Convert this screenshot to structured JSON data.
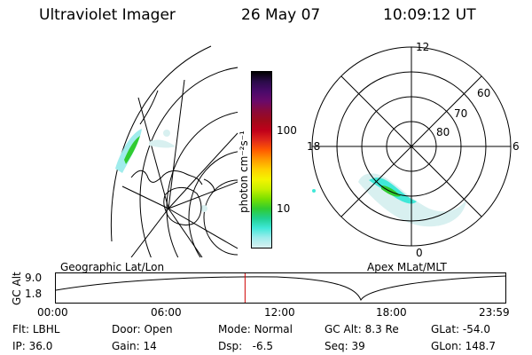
{
  "header": {
    "title": "Ultraviolet Imager",
    "date": "26 May 07",
    "time": "10:09:12 UT"
  },
  "colorbar": {
    "unit_label": "photon cm⁻²s⁻¹",
    "ticks": [
      "100",
      "10"
    ],
    "colors": [
      "#000000",
      "#2b0b4a",
      "#4a0a6a",
      "#6a0a6a",
      "#8a0a3a",
      "#a00a1a",
      "#c0001a",
      "#e0281a",
      "#ff5a00",
      "#ff9a00",
      "#ffd000",
      "#f4f400",
      "#c8f000",
      "#7ae000",
      "#30cc30",
      "#20d090",
      "#40e8d8",
      "#a0ecec",
      "#d8f0f0"
    ]
  },
  "left_map": {
    "caption": "Geographic Lat/Lon"
  },
  "right_map": {
    "caption": "Apex MLat/MLT",
    "mlt_labels": {
      "top": "12",
      "left": "18",
      "right": "6",
      "bottom": "0"
    },
    "lat_labels": [
      "60",
      "70",
      "80"
    ]
  },
  "timeline": {
    "ylabel": "GC Alt",
    "yticks": [
      "9.0",
      "1.8"
    ],
    "xticks": [
      "00:00",
      "06:00",
      "12:00",
      "18:00",
      "23:59"
    ],
    "current_time_fraction": 0.42
  },
  "info": {
    "row1": [
      {
        "k": "Flt:",
        "v": "LBHL"
      },
      {
        "k": "Door:",
        "v": "Open"
      },
      {
        "k": "Mode:",
        "v": "Normal"
      },
      {
        "k": "GC Alt:",
        "v": "8.3 Re"
      },
      {
        "k": "GLat:",
        "v": "-54.0"
      }
    ],
    "row2": [
      {
        "k": "IP:",
        "v": "36.0"
      },
      {
        "k": "Gain:",
        "v": "14"
      },
      {
        "k": "Dsp:",
        "v": "-6.5"
      },
      {
        "k": "Seq:",
        "v": "39"
      },
      {
        "k": "GLon:",
        "v": "148.7"
      }
    ]
  }
}
